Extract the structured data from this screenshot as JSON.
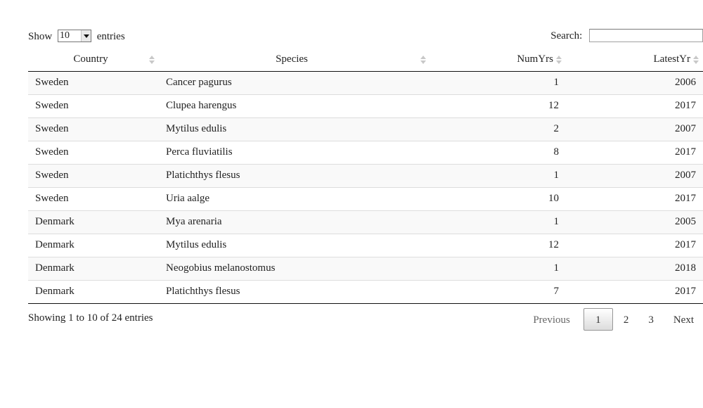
{
  "length": {
    "show_label": "Show",
    "selected": "10",
    "entries_label": "entries"
  },
  "search": {
    "label": "Search:",
    "value": ""
  },
  "table": {
    "columns": [
      "Country",
      "Species",
      "NumYrs",
      "LatestYr"
    ],
    "rows": [
      {
        "country": "Sweden",
        "species": "Cancer pagurus",
        "numyrs": "1",
        "latestyr": "2006"
      },
      {
        "country": "Sweden",
        "species": "Clupea harengus",
        "numyrs": "12",
        "latestyr": "2017"
      },
      {
        "country": "Sweden",
        "species": "Mytilus edulis",
        "numyrs": "2",
        "latestyr": "2007"
      },
      {
        "country": "Sweden",
        "species": "Perca fluviatilis",
        "numyrs": "8",
        "latestyr": "2017"
      },
      {
        "country": "Sweden",
        "species": "Platichthys flesus",
        "numyrs": "1",
        "latestyr": "2007"
      },
      {
        "country": "Sweden",
        "species": "Uria aalge",
        "numyrs": "10",
        "latestyr": "2017"
      },
      {
        "country": "Denmark",
        "species": "Mya arenaria",
        "numyrs": "1",
        "latestyr": "2005"
      },
      {
        "country": "Denmark",
        "species": "Mytilus edulis",
        "numyrs": "12",
        "latestyr": "2017"
      },
      {
        "country": "Denmark",
        "species": "Neogobius melanostomus",
        "numyrs": "1",
        "latestyr": "2018"
      },
      {
        "country": "Denmark",
        "species": "Platichthys flesus",
        "numyrs": "7",
        "latestyr": "2017"
      }
    ]
  },
  "info": "Showing 1 to 10 of 24 entries",
  "pagination": {
    "previous": "Previous",
    "pages": [
      "1",
      "2",
      "3"
    ],
    "next": "Next"
  }
}
